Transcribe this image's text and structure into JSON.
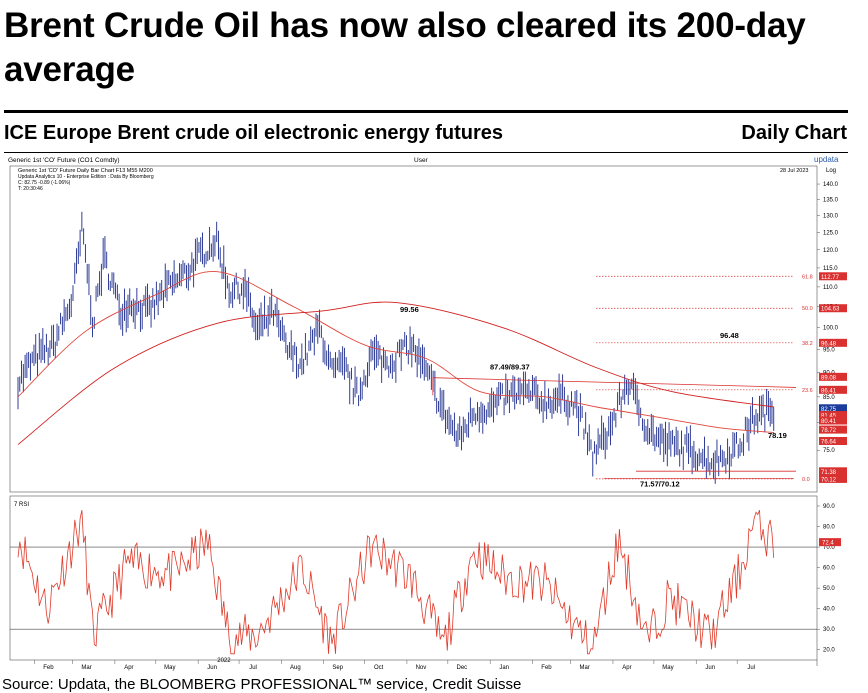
{
  "page": {
    "title": "Brent Crude Oil has now also cleared its 200-day average",
    "subtitle": "ICE Europe Brent crude oil electronic energy futures",
    "chart_label": "Daily Chart",
    "source": "Source: Updata, the BLOOMBERG PROFESSIONAL™ service, Credit Suisse"
  },
  "header": {
    "left": "Generic 1st 'CO' Future (CO1 Comdty)",
    "center": "User",
    "right": "updata",
    "info1": "Generic 1st 'CO' Future Daily Bar Chart   F13      M55      M200",
    "info1_right": "28 Jul 2023",
    "info2": "Updata Analytics 10 - Enterprise Edition : Data By Bloomberg",
    "info3": "C: 82.75  -0.89 (-1.06%)",
    "info4": "T: 20:30:46",
    "scale": "Log"
  },
  "colors": {
    "bars": "#1a2a8c",
    "ma_short": "#e0463c",
    "ma_long": "#d21e1e",
    "rsi": "#e03a2a",
    "fib": "#d93030",
    "panel_bg": "#ffffff",
    "badge_blue": "#1c3c9c"
  },
  "chart_data": [
    {
      "type": "line",
      "title": "",
      "scale": "log",
      "ylim": [
        68,
        142
      ],
      "y_ticks": [
        75,
        80,
        85,
        90,
        95,
        100,
        105,
        110,
        115,
        120,
        125,
        130,
        135,
        140
      ],
      "x_ticks": [
        "Feb",
        "Mar",
        "Apr",
        "May",
        "Jun",
        "Jul",
        "Aug",
        "Sep",
        "Oct",
        "Nov",
        "Dec",
        "Jan",
        "Feb",
        "Mar",
        "Apr",
        "May",
        "Jun",
        "Jul"
      ],
      "year_label": "2022",
      "series": [
        {
          "kind": "daily_bars",
          "x": [
            "2022-01-20",
            "2022-02-01",
            "2022-02-15",
            "2022-03-01",
            "2022-03-08",
            "2022-03-16",
            "2022-03-24",
            "2022-04-05",
            "2022-04-12",
            "2022-04-26",
            "2022-05-10",
            "2022-05-24",
            "2022-06-06",
            "2022-06-14",
            "2022-06-24",
            "2022-07-05",
            "2022-07-14",
            "2022-07-26",
            "2022-08-05",
            "2022-08-16",
            "2022-08-29",
            "2022-09-07",
            "2022-09-16",
            "2022-09-26",
            "2022-10-06",
            "2022-10-18",
            "2022-11-04",
            "2022-11-15",
            "2022-11-28",
            "2022-12-09",
            "2022-12-20",
            "2023-01-03",
            "2023-01-12",
            "2023-01-27",
            "2023-02-10",
            "2023-02-24",
            "2023-03-06",
            "2023-03-17",
            "2023-03-30",
            "2023-04-12",
            "2023-04-26",
            "2023-05-04",
            "2023-05-12",
            "2023-05-29",
            "2023-06-12",
            "2023-06-22",
            "2023-07-03",
            "2023-07-13",
            "2023-07-28"
          ],
          "y": [
            88,
            93,
            96,
            107,
            126,
            101,
            118,
            104,
            106,
            104,
            110,
            114,
            120,
            123,
            109,
            110,
            99,
            104,
            95,
            92,
            100,
            90,
            91,
            85,
            94,
            92,
            96,
            90,
            82,
            77,
            82,
            83,
            85,
            86,
            84,
            85,
            83,
            74,
            79,
            88,
            79,
            77,
            76,
            75,
            73,
            74,
            76,
            81,
            82.75
          ]
        },
        {
          "name": "M55",
          "x": [
            "2022-01-20",
            "2022-03-10",
            "2022-05-01",
            "2022-06-15",
            "2022-08-10",
            "2022-10-01",
            "2022-11-15",
            "2022-12-25",
            "2023-02-10",
            "2023-03-20",
            "2023-05-05",
            "2023-06-20",
            "2023-07-28"
          ],
          "y": [
            85,
            99,
            108,
            114,
            105,
            96,
            93,
            86,
            85,
            83,
            81,
            79,
            78.19
          ]
        },
        {
          "name": "M200",
          "x": [
            "2022-01-20",
            "2022-04-01",
            "2022-06-15",
            "2022-09-01",
            "2022-10-25",
            "2023-01-10",
            "2023-03-20",
            "2023-05-15",
            "2023-07-28"
          ],
          "y": [
            76,
            91,
            101,
            104,
            106,
            100,
            91,
            86,
            83
          ]
        }
      ],
      "annotations": [
        "99.56",
        "87.49/89.37",
        "96.48",
        "78.19",
        "71.57/70.12"
      ],
      "fib_levels": [
        {
          "label": "61.8",
          "badge": "112.77"
        },
        {
          "label": "50.0",
          "badge": "104.63"
        },
        {
          "label": "38.2",
          "badge": "96.48"
        },
        {
          "label": "23.6",
          "badge": "86.41"
        },
        {
          "label": "0.0",
          "badge": "70.12"
        }
      ],
      "right_badges": [
        "112.77",
        "104.63",
        "96.48",
        "89.08",
        "86.41",
        "82.75",
        "81.45",
        "80.41",
        "78.72",
        "76.64",
        "71.38",
        "70.12"
      ]
    },
    {
      "type": "line",
      "title": "7 RSI",
      "ylim": [
        15,
        90
      ],
      "y_ticks": [
        20,
        30,
        40,
        50,
        60,
        70,
        80,
        90
      ],
      "reference_lines": [
        30,
        70
      ],
      "last_value_badge": "72.4",
      "series": [
        {
          "name": "7 RSI",
          "x": [
            "2022-01-20",
            "2022-02-10",
            "2022-03-01",
            "2022-03-08",
            "2022-03-16",
            "2022-04-10",
            "2022-05-15",
            "2022-06-08",
            "2022-06-24",
            "2022-07-14",
            "2022-08-16",
            "2022-09-07",
            "2022-10-06",
            "2022-11-04",
            "2022-11-28",
            "2022-12-20",
            "2023-01-12",
            "2023-02-10",
            "2023-03-17",
            "2023-04-05",
            "2023-04-26",
            "2023-05-12",
            "2023-06-12",
            "2023-07-03",
            "2023-07-13",
            "2023-07-28"
          ],
          "y": [
            76,
            40,
            72,
            84,
            26,
            62,
            57,
            72,
            26,
            27,
            60,
            23,
            70,
            55,
            22,
            68,
            55,
            52,
            20,
            74,
            24,
            46,
            26,
            58,
            82,
            72.4
          ]
        }
      ]
    }
  ]
}
